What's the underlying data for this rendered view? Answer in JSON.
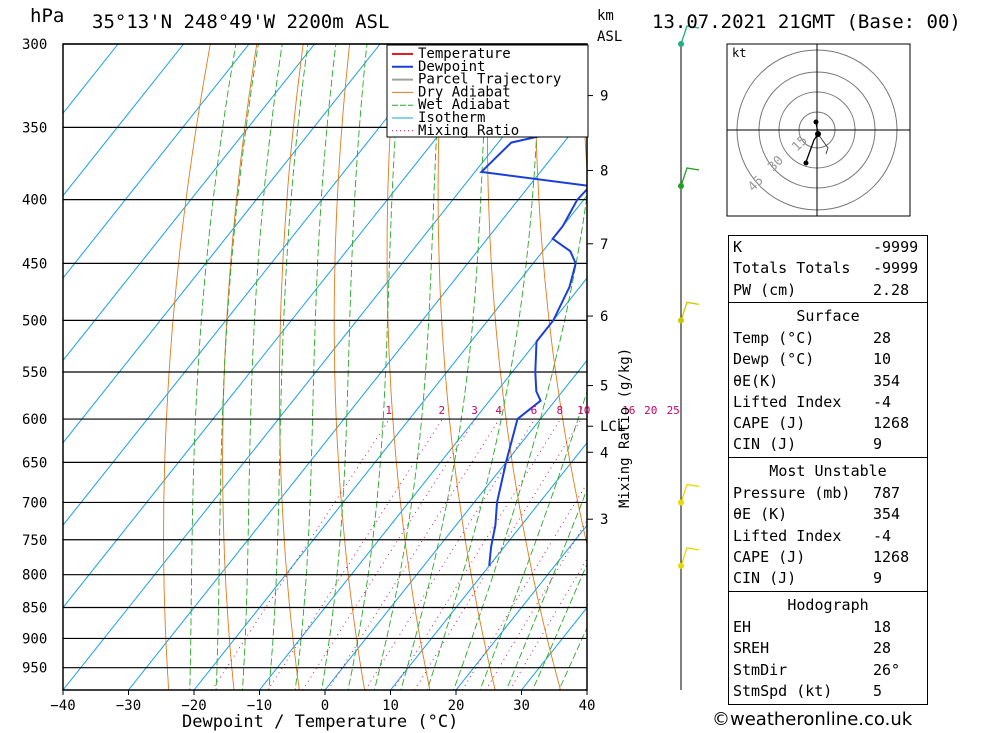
{
  "header": {
    "pressure_unit": "hPa",
    "location": "35°13'N  248°49'W  2200m  ASL",
    "height_unit_line1": "km",
    "height_unit_line2": "ASL",
    "datetime": "13.07.2021  21GMT  (Base: 00)"
  },
  "footer": {
    "copyright": "©weatheronline.co.uk"
  },
  "colors": {
    "temperature": "#e02020",
    "dewpoint": "#1a3fd8",
    "parcel": "#a0a0a0",
    "dry_adiabat": "#e07a1a",
    "wet_adiabat": "#2aa82a",
    "isotherm": "#1a9fe0",
    "mixing_ratio": "#cc0066",
    "wind": "#d8d800"
  },
  "chart_data": {
    "type": "line",
    "subtype": "skew-T log-P",
    "title": "35°13'N  248°49'W  2200m  ASL",
    "xlabel": "Dewpoint / Temperature (°C)",
    "ylabel": "hPa",
    "right_label": "Mixing Ratio (g/kg)",
    "xlim": [
      -40,
      40
    ],
    "ylim": [
      300,
      990
    ],
    "x_ticks": [
      -40,
      -30,
      -20,
      -10,
      0,
      10,
      20,
      30,
      40
    ],
    "x_tick_labels": [
      "−40",
      "−30",
      "−20",
      "−10",
      "0",
      "10",
      "20",
      "30",
      "40"
    ],
    "pressure_ticks": [
      300,
      350,
      400,
      450,
      500,
      550,
      600,
      650,
      700,
      750,
      800,
      850,
      900,
      950
    ],
    "km_ticks": [
      {
        "label": "9",
        "p": 330
      },
      {
        "label": "8",
        "p": 379
      },
      {
        "label": "7",
        "p": 434
      },
      {
        "label": "6",
        "p": 496
      },
      {
        "label": "5",
        "p": 564
      },
      {
        "label": "LCL",
        "p": 608
      },
      {
        "label": "4",
        "p": 638
      },
      {
        "label": "3",
        "p": 722
      }
    ],
    "mixing_ratio_labels": [
      {
        "label": "1",
        "w": 1
      },
      {
        "label": "2",
        "w": 2
      },
      {
        "label": "3",
        "w": 3
      },
      {
        "label": "4",
        "w": 4
      },
      {
        "label": "6",
        "w": 6
      },
      {
        "label": "8",
        "w": 8
      },
      {
        "label": "10",
        "w": 10
      },
      {
        "label": "16",
        "w": 16
      },
      {
        "label": "20",
        "w": 20
      },
      {
        "label": "25",
        "w": 25
      }
    ],
    "legend_position": "top-right",
    "legend": [
      "Temperature",
      "Dewpoint",
      "Parcel Trajectory",
      "Dry Adiabat",
      "Wet Adiabat",
      "Isotherm",
      "Mixing Ratio"
    ],
    "series": [
      {
        "name": "Temperature",
        "points": [
          [
            787,
            27.8
          ],
          [
            750,
            24.2
          ],
          [
            700,
            19.4
          ],
          [
            650,
            14.6
          ],
          [
            600,
            9.6
          ],
          [
            550,
            4.6
          ],
          [
            530,
            1.9
          ],
          [
            500,
            -0.3
          ],
          [
            470,
            -3.3
          ],
          [
            450,
            -5.8
          ],
          [
            430,
            -8.4
          ],
          [
            400,
            -12.6
          ],
          [
            380,
            -15.0
          ],
          [
            360,
            -19.5
          ],
          [
            350,
            -21.2
          ],
          [
            330,
            -24.2
          ],
          [
            310,
            -26.8
          ],
          [
            300,
            -28.0
          ]
        ]
      },
      {
        "name": "Dewpoint",
        "points": [
          [
            787,
            10.0
          ],
          [
            760,
            8.0
          ],
          [
            730,
            6.0
          ],
          [
            700,
            3.5
          ],
          [
            650,
            0.0
          ],
          [
            600,
            -3.5
          ],
          [
            580,
            -2.2
          ],
          [
            570,
            -4.0
          ],
          [
            550,
            -6.5
          ],
          [
            520,
            -10.0
          ],
          [
            510,
            -10.0
          ],
          [
            500,
            -10.0
          ],
          [
            470,
            -11.6
          ],
          [
            450,
            -13.5
          ],
          [
            440,
            -15.8
          ],
          [
            430,
            -20.0
          ],
          [
            420,
            -20.0
          ],
          [
            400,
            -21.0
          ],
          [
            390,
            -20.7
          ],
          [
            380,
            -39.0
          ],
          [
            360,
            -38.0
          ],
          [
            350,
            -29.5
          ],
          [
            345,
            -39.0
          ],
          [
            338,
            -34.8
          ],
          [
            328,
            -31.0
          ],
          [
            320,
            -36.0
          ],
          [
            310,
            -39.5
          ],
          [
            300,
            -39.5
          ]
        ]
      },
      {
        "name": "Parcel Trajectory",
        "points": [
          [
            787,
            27.8
          ],
          [
            700,
            18.0
          ],
          [
            640,
            11.8
          ],
          [
            610,
            9.2
          ],
          [
            600,
            8.8
          ],
          [
            550,
            6.0
          ],
          [
            500,
            2.8
          ],
          [
            450,
            -1.2
          ],
          [
            400,
            -6.4
          ],
          [
            360,
            -11.8
          ]
        ]
      }
    ],
    "wind_barbs": [
      {
        "p": 300,
        "color": "#20b080"
      },
      {
        "p": 390,
        "color": "#20a020"
      },
      {
        "p": 500,
        "color": "#c8c800"
      },
      {
        "p": 700,
        "color": "#e8d800"
      },
      {
        "p": 787,
        "color": "#e8d800"
      }
    ]
  },
  "hodograph": {
    "unit_label": "kt",
    "ring_labels": [
      "15",
      "30",
      "45"
    ]
  },
  "indices": {
    "basic": [
      {
        "key": "K",
        "value": "-9999"
      },
      {
        "key": "Totals Totals",
        "value": "-9999"
      },
      {
        "key": "PW (cm)",
        "value": "2.28"
      }
    ],
    "surface": {
      "title": "Surface",
      "rows": [
        {
          "key": "Temp (°C)",
          "value": "28"
        },
        {
          "key": "Dewp (°C)",
          "value": "10"
        },
        {
          "key": "θE(K)",
          "value": "354"
        },
        {
          "key": "Lifted Index",
          "value": "-4"
        },
        {
          "key": "CAPE (J)",
          "value": "1268"
        },
        {
          "key": "CIN (J)",
          "value": "9"
        }
      ]
    },
    "most_unstable": {
      "title": "Most Unstable",
      "rows": [
        {
          "key": "Pressure (mb)",
          "value": "787"
        },
        {
          "key": "θE (K)",
          "value": "354"
        },
        {
          "key": "Lifted Index",
          "value": "-4"
        },
        {
          "key": "CAPE (J)",
          "value": "1268"
        },
        {
          "key": "CIN (J)",
          "value": "9"
        }
      ]
    },
    "hodograph": {
      "title": "Hodograph",
      "rows": [
        {
          "key": "EH",
          "value": "18"
        },
        {
          "key": "SREH",
          "value": "28"
        },
        {
          "key": "StmDir",
          "value": "26°"
        },
        {
          "key": "StmSpd (kt)",
          "value": "5"
        }
      ]
    }
  }
}
